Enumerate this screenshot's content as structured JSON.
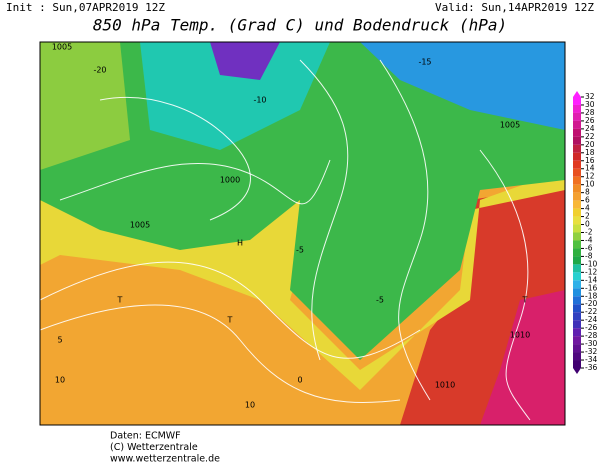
{
  "header": {
    "init": "Init : Sun,07APR2019 12Z",
    "valid": "Valid: Sun,14APR2019 12Z",
    "title": "850 hPa Temp. (Grad C) und Bodendruck (hPa)"
  },
  "colorbar": {
    "ticks": [
      32,
      30,
      28,
      26,
      24,
      22,
      20,
      18,
      16,
      14,
      12,
      10,
      8,
      6,
      4,
      2,
      0,
      -2,
      -4,
      -6,
      -8,
      -10,
      -12,
      -14,
      -16,
      -18,
      -20,
      -22,
      -24,
      -26,
      -28,
      -30,
      -32,
      -34,
      -36
    ],
    "colors": [
      "#ff20ff",
      "#f020d0",
      "#e020b0",
      "#d01890",
      "#c01070",
      "#b01060",
      "#c02040",
      "#d02828",
      "#e03820",
      "#e85020",
      "#f07020",
      "#f08c24",
      "#f4a030",
      "#f8b838",
      "#f0d030",
      "#e8e040",
      "#c8e040",
      "#90d040",
      "#50c040",
      "#30b040",
      "#20a848",
      "#20c0a0",
      "#28d0d0",
      "#30b0e8",
      "#2090e0",
      "#2070d8",
      "#2050c8",
      "#3040c0",
      "#4030b8",
      "#6020b0",
      "#7018a0",
      "#601090",
      "#500880",
      "#400070"
    ]
  },
  "map_labels": [
    "H",
    "T",
    "T",
    "T",
    "1005",
    "1005",
    "1010",
    "1010",
    "1005",
    "1000",
    "-5",
    "-10",
    "-15",
    "-5",
    "5",
    "10",
    "10",
    "0",
    "-20"
  ],
  "footer": [
    "Daten: ECMWF",
    "(C) Wetterzentrale",
    "www.wetterzentrale.de"
  ]
}
